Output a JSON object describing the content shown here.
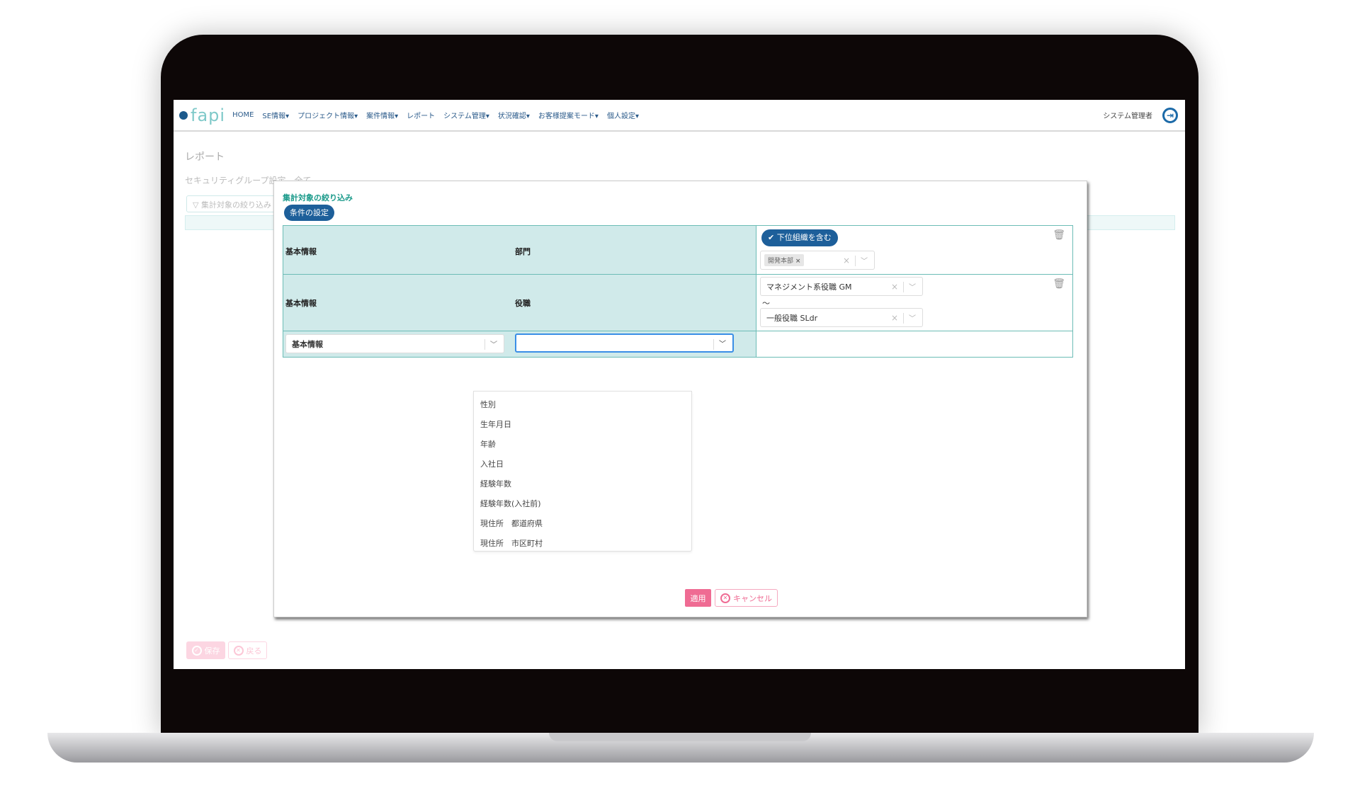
{
  "nav": {
    "logo": "fapi",
    "items": [
      "HOME",
      "SE情報▾",
      "プロジェクト情報▾",
      "案件情報▾",
      "レポート",
      "システム管理▾",
      "状況確認▾",
      "お客様提案モード▾",
      "個人設定▾"
    ],
    "user": "システム管理者",
    "logout_icon": "logout-icon"
  },
  "page": {
    "title": "レポート",
    "security_group": "セキュリティグループ設定　全て",
    "filter_placeholder": "集計対象の絞り込み",
    "save_label": "保存",
    "back_label": "戻る"
  },
  "modal": {
    "title": "集計対象の絞り込み",
    "condition_button": "条件の設定",
    "rows": [
      {
        "category": "基本情報",
        "field": "部門",
        "include_sub_label": "下位組織を含む",
        "chip": "開発本部"
      },
      {
        "category": "基本情報",
        "field": "役職",
        "from": "マネジメント系役職 GM",
        "range_sep": "～",
        "to": "一般役職 SLdr"
      },
      {
        "category_select": "基本情報",
        "field_select": ""
      }
    ],
    "options": [
      "性別",
      "生年月日",
      "年齢",
      "入社日",
      "経験年数",
      "経験年数(入社前)",
      "現住所　都道府県",
      "現住所　市区町村"
    ],
    "apply_label": "適用",
    "cancel_label": "キャンセル"
  },
  "colors": {
    "accent": "#1d5f9a",
    "teal": "#d0eaea",
    "pink": "#ef6b93"
  }
}
